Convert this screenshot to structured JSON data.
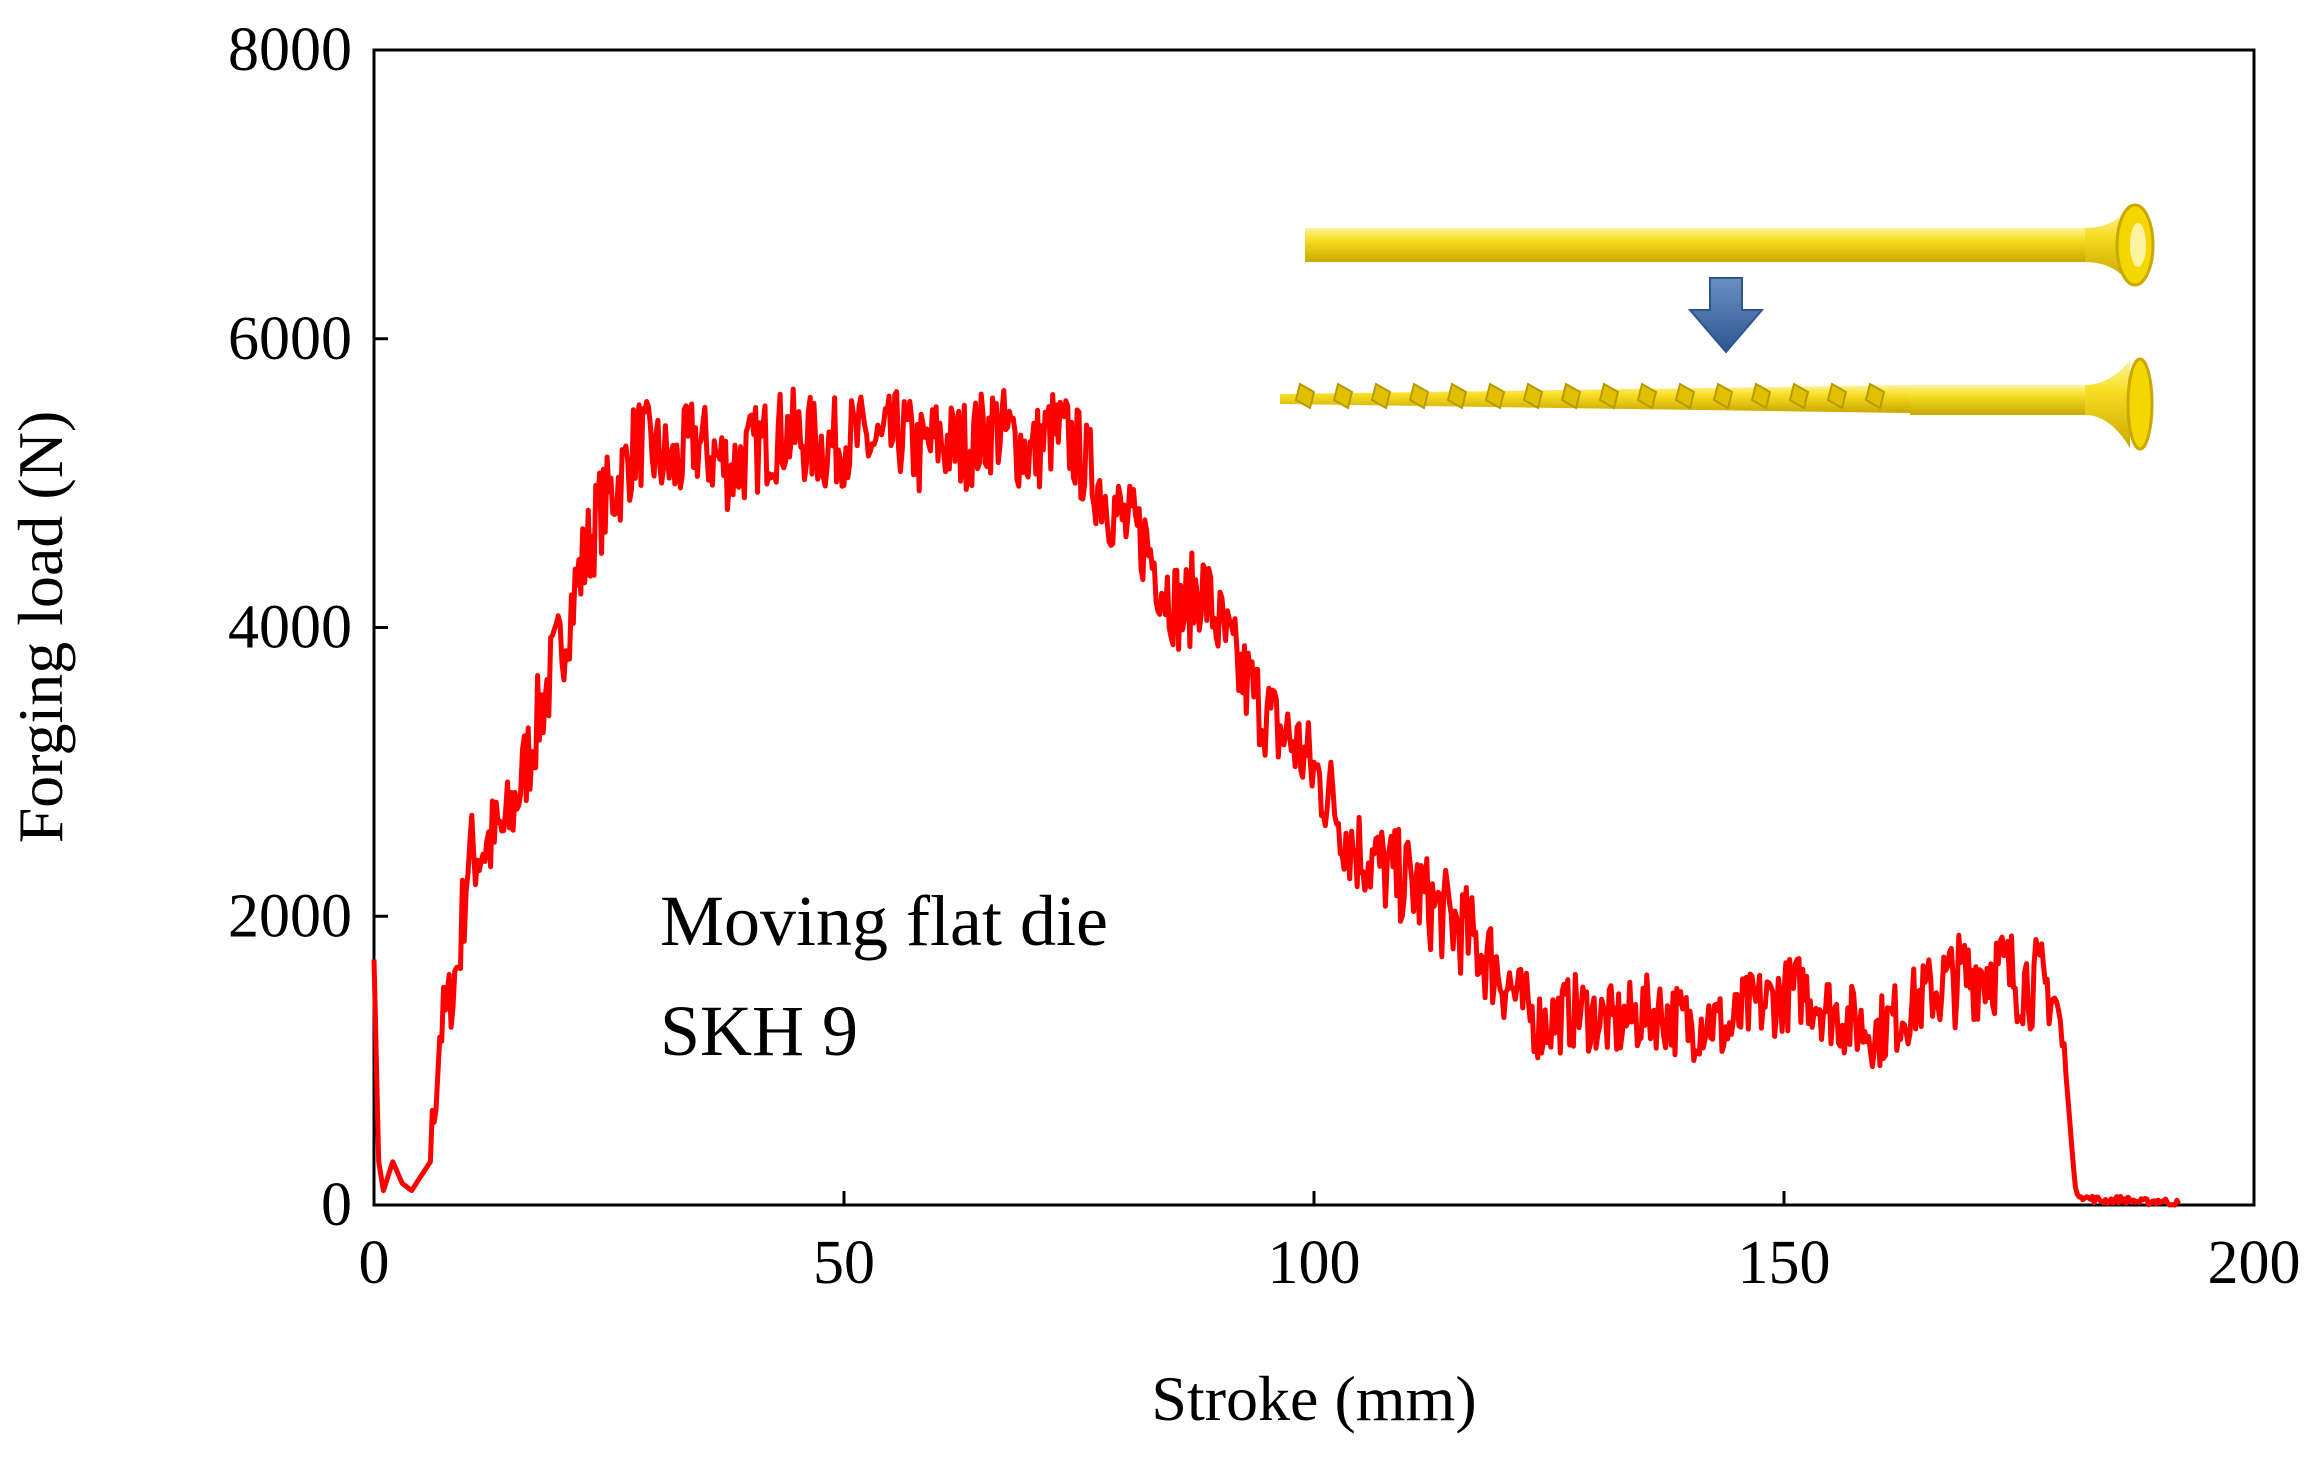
{
  "chart_data": {
    "type": "line",
    "title": "",
    "xlabel": "Stroke (mm)",
    "ylabel": "Forging load (N)",
    "xlim": [
      0,
      200
    ],
    "ylim": [
      0,
      8000
    ],
    "xticks": [
      0,
      50,
      100,
      150,
      200
    ],
    "yticks": [
      0,
      2000,
      4000,
      6000,
      8000
    ],
    "grid": false,
    "annotation": [
      "Moving flat die",
      "SKH 9"
    ],
    "series": [
      {
        "name": "Forging load",
        "color": "#ff0000",
        "x": [
          0,
          0.5,
          1,
          2,
          3,
          4,
          5,
          6,
          7,
          8,
          9,
          10,
          12,
          14,
          16,
          18,
          20,
          22,
          24,
          26,
          28,
          30,
          32,
          34,
          36,
          38,
          40,
          42,
          44,
          46,
          48,
          50,
          52,
          54,
          56,
          58,
          60,
          62,
          64,
          66,
          68,
          70,
          72,
          74,
          76,
          78,
          80,
          82,
          84,
          86,
          88,
          90,
          92,
          94,
          96,
          98,
          100,
          102,
          104,
          106,
          108,
          110,
          112,
          114,
          116,
          118,
          120,
          122,
          124,
          126,
          128,
          130,
          132,
          134,
          136,
          138,
          140,
          142,
          144,
          146,
          148,
          150,
          152,
          154,
          156,
          158,
          160,
          162,
          164,
          166,
          168,
          170,
          172,
          174,
          176,
          178,
          179,
          180,
          181,
          182,
          184,
          186,
          188,
          190,
          192
        ],
        "y": [
          1700,
          300,
          100,
          300,
          150,
          100,
          200,
          300,
          1200,
          1400,
          1700,
          2400,
          2500,
          2600,
          3000,
          3500,
          3900,
          4400,
          4800,
          5000,
          5300,
          5200,
          5100,
          5300,
          5200,
          5100,
          5200,
          5300,
          5350,
          5300,
          5250,
          5300,
          5300,
          5250,
          5350,
          5200,
          5300,
          5250,
          5300,
          5400,
          5300,
          5200,
          5350,
          5300,
          5100,
          4900,
          4700,
          4600,
          4300,
          4100,
          4300,
          4000,
          3700,
          3500,
          3300,
          3200,
          3000,
          2800,
          2500,
          2400,
          2300,
          2250,
          2100,
          2000,
          1900,
          1750,
          1600,
          1400,
          1250,
          1300,
          1350,
          1300,
          1250,
          1300,
          1350,
          1300,
          1250,
          1300,
          1200,
          1350,
          1400,
          1450,
          1500,
          1400,
          1300,
          1250,
          1200,
          1300,
          1400,
          1500,
          1550,
          1600,
          1650,
          1600,
          1550,
          1500,
          1400,
          900,
          100,
          50,
          30,
          40,
          20,
          30,
          10
        ]
      }
    ]
  },
  "illustration": {
    "screw_color": "#f2d400",
    "arrow_color": "#4a6fa5",
    "arrow_icon": "down-arrow-icon"
  }
}
